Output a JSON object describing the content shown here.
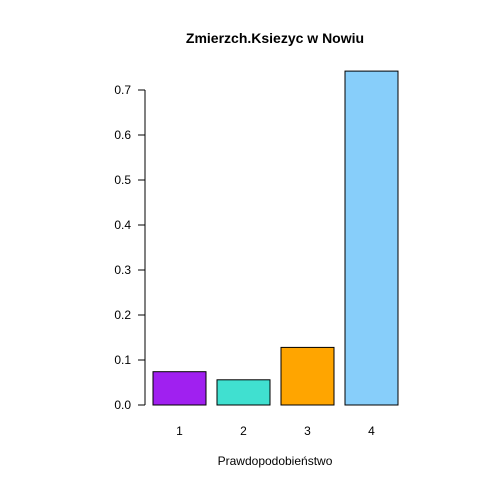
{
  "chart_data": {
    "type": "bar",
    "title": "Zmierzch.Ksiezyc w Nowiu",
    "xlabel": "Prawdopodobieństwo",
    "ylabel": "",
    "categories": [
      "1",
      "2",
      "3",
      "4"
    ],
    "values": [
      0.074,
      0.056,
      0.128,
      0.742
    ],
    "colors": [
      "#a020f0",
      "#40e0d0",
      "#ffa500",
      "#87cefa"
    ],
    "ylim": [
      0,
      0.7
    ],
    "yticks": [
      0.0,
      0.1,
      0.2,
      0.3,
      0.4,
      0.5,
      0.6,
      0.7
    ],
    "ytick_labels": [
      "0.0",
      "0.1",
      "0.2",
      "0.3",
      "0.4",
      "0.5",
      "0.6",
      "0.7"
    ],
    "grid": false,
    "legend": "none"
  }
}
